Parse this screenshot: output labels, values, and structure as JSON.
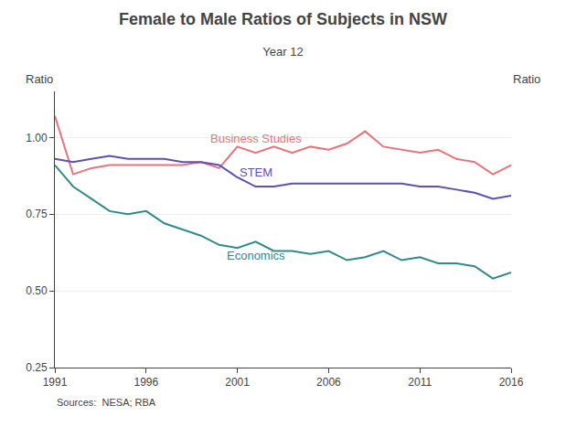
{
  "chart_data": {
    "type": "line",
    "title": "Female to Male Ratios of Subjects in NSW",
    "subtitle": "Year 12",
    "ylabel": "Ratio",
    "y2label": "Ratio",
    "source": "Sources:  NESA; RBA",
    "x": [
      1991,
      1992,
      1993,
      1994,
      1995,
      1996,
      1997,
      1998,
      1999,
      2000,
      2001,
      2002,
      2003,
      2004,
      2005,
      2006,
      2007,
      2008,
      2009,
      2010,
      2011,
      2012,
      2013,
      2014,
      2015,
      2016
    ],
    "series": [
      {
        "name": "Business Studies",
        "color": "#e8737a",
        "values": [
          1.07,
          0.88,
          0.9,
          0.91,
          0.91,
          0.91,
          0.91,
          0.91,
          0.92,
          0.9,
          0.97,
          0.95,
          0.97,
          0.95,
          0.97,
          0.96,
          0.98,
          1.02,
          0.97,
          0.96,
          0.95,
          0.96,
          0.93,
          0.92,
          0.88,
          0.91
        ]
      },
      {
        "name": "STEM",
        "color": "#5b52b0",
        "values": [
          0.93,
          0.92,
          0.93,
          0.94,
          0.93,
          0.93,
          0.93,
          0.92,
          0.92,
          0.91,
          0.87,
          0.84,
          0.84,
          0.85,
          0.85,
          0.85,
          0.85,
          0.85,
          0.85,
          0.85,
          0.84,
          0.84,
          0.83,
          0.82,
          0.8,
          0.81
        ]
      },
      {
        "name": "Economics",
        "color": "#2e8b8b",
        "values": [
          0.91,
          0.84,
          0.8,
          0.76,
          0.75,
          0.76,
          0.72,
          0.7,
          0.68,
          0.65,
          0.64,
          0.66,
          0.63,
          0.63,
          0.62,
          0.63,
          0.6,
          0.61,
          0.63,
          0.6,
          0.61,
          0.59,
          0.59,
          0.58,
          0.54,
          0.56
        ]
      }
    ],
    "xlim": [
      1991,
      2016
    ],
    "xticks": [
      1991,
      1996,
      2001,
      2006,
      2011,
      2016
    ],
    "ylim": [
      0.25,
      1.15
    ],
    "yticks": [
      0.25,
      {
        "value": 0.5,
        "label": "0.50"
      },
      0.75,
      {
        "value": 1.0,
        "label": "1.00"
      }
    ],
    "y2lim": [
      0.25,
      1.15
    ],
    "y2ticks": [
      0.25,
      {
        "value": 0.5,
        "label": "0.50"
      },
      0.75,
      {
        "value": 1.0,
        "label": "1.00"
      }
    ],
    "grid": true
  }
}
